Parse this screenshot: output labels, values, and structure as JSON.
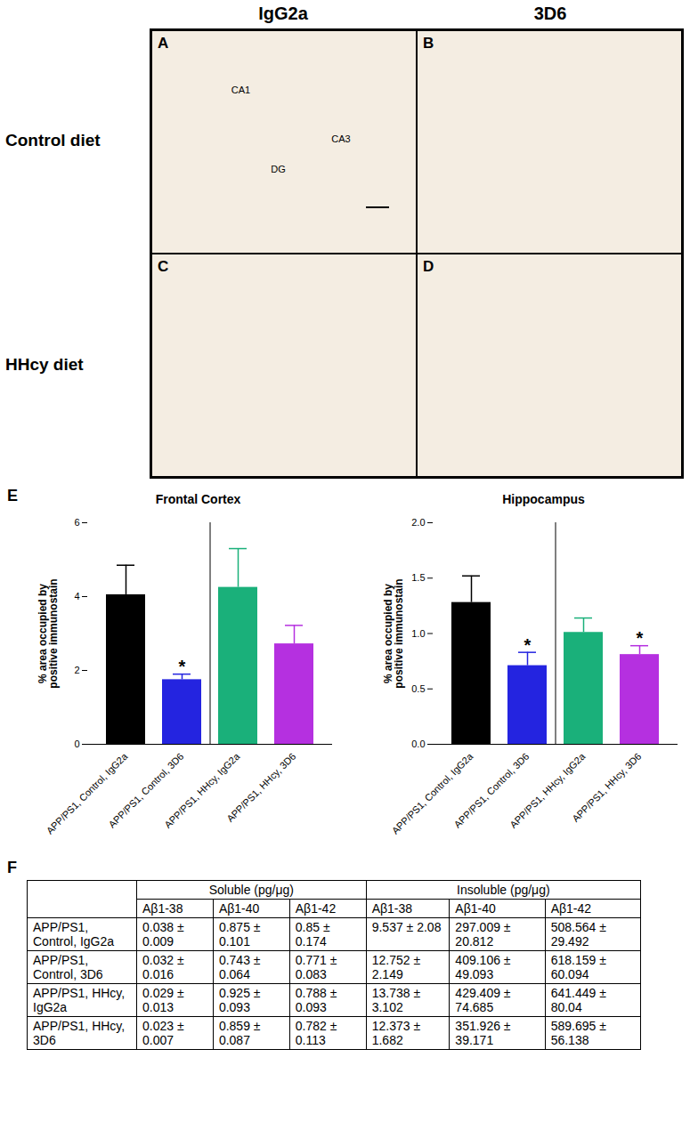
{
  "figure_panels": {
    "column_headers": [
      "IgG2a",
      "3D6"
    ],
    "row_headers": [
      "Control diet",
      "HHcy diet"
    ],
    "panels": [
      {
        "label": "A",
        "annotations": [
          "CA1",
          "CA3",
          "DG"
        ]
      },
      {
        "label": "B"
      },
      {
        "label": "C"
      },
      {
        "label": "D"
      }
    ]
  },
  "chart_panel_label": "E",
  "chart_data": [
    {
      "type": "bar",
      "title": "Frontal Cortex",
      "y_label": "% area occupied by\npositive immunostain",
      "categories": [
        "APP/PS1, Control, IgG2a",
        "APP/PS1, Control, 3D6",
        "APP/PS1, HHcy, IgG2a",
        "APP/PS1, HHcy, 3D6"
      ],
      "values": [
        4.05,
        1.75,
        4.25,
        2.72
      ],
      "errors": [
        0.8,
        0.15,
        1.05,
        0.5
      ],
      "colors": [
        "#000000",
        "#2424e0",
        "#1ab07a",
        "#b530e0"
      ],
      "ylim": [
        0,
        6
      ],
      "yticks": [
        0,
        2,
        4,
        6
      ],
      "annotations": [
        {
          "category": "APP/PS1, Control, 3D6",
          "text": "*"
        }
      ]
    },
    {
      "type": "bar",
      "title": "Hippocampus",
      "y_label": "% area occupied by\npositive immunostain",
      "categories": [
        "APP/PS1, Control, IgG2a",
        "APP/PS1, Control, 3D6",
        "APP/PS1, HHcy, IgG2a",
        "APP/PS1, HHcy, 3D6"
      ],
      "values": [
        1.28,
        0.71,
        1.01,
        0.81
      ],
      "errors": [
        0.24,
        0.12,
        0.13,
        0.08
      ],
      "colors": [
        "#000000",
        "#2424e0",
        "#1ab07a",
        "#b530e0"
      ],
      "ylim": [
        0,
        2
      ],
      "yticks": [
        {
          "value": 0,
          "label": "0.0"
        },
        0.5,
        {
          "value": 1,
          "label": "1.0"
        },
        1.5,
        {
          "value": 2,
          "label": "2.0"
        }
      ],
      "annotations": [
        {
          "category": "APP/PS1, Control, 3D6",
          "text": "*"
        },
        {
          "category": "APP/PS1, HHcy, 3D6",
          "text": "*"
        }
      ]
    }
  ],
  "table": {
    "label": "F",
    "header_groups": [
      {
        "text": "Soluble (pg/μg)",
        "span": 3
      },
      {
        "text": "Insoluble (pg/μg)",
        "span": 3
      }
    ],
    "columns": [
      "Aβ1-38",
      "Aβ1-40",
      "Aβ1-42",
      "Aβ1-38",
      "Aβ1-40",
      "Aβ1-42"
    ],
    "rows": [
      {
        "group": "APP/PS1, Control, IgG2a",
        "cells": [
          "0.038 ± 0.009",
          "0.875 ± 0.101",
          "0.85 ± 0.174",
          "9.537 ± 2.08",
          "297.009 ± 20.812",
          "508.564 ± 29.492"
        ]
      },
      {
        "group": "APP/PS1, Control, 3D6",
        "cells": [
          "0.032 ± 0.016",
          "0.743 ± 0.064",
          "0.771 ± 0.083",
          "12.752 ± 2.149",
          "409.106 ± 49.093",
          "618.159 ± 60.094"
        ]
      },
      {
        "group": "APP/PS1, HHcy, IgG2a",
        "cells": [
          "0.029 ± 0.013",
          "0.925 ± 0.093",
          "0.788 ± 0.093",
          "13.738 ± 3.102",
          "429.409 ± 74.685",
          "641.449 ± 80.04"
        ]
      },
      {
        "group": "APP/PS1, HHcy, 3D6",
        "cells": [
          "0.023 ± 0.007",
          "0.859 ± 0.087",
          "0.782 ± 0.113",
          "12.373 ± 1.682",
          "351.926 ± 39.171",
          "589.695 ± 56.138"
        ]
      }
    ]
  }
}
